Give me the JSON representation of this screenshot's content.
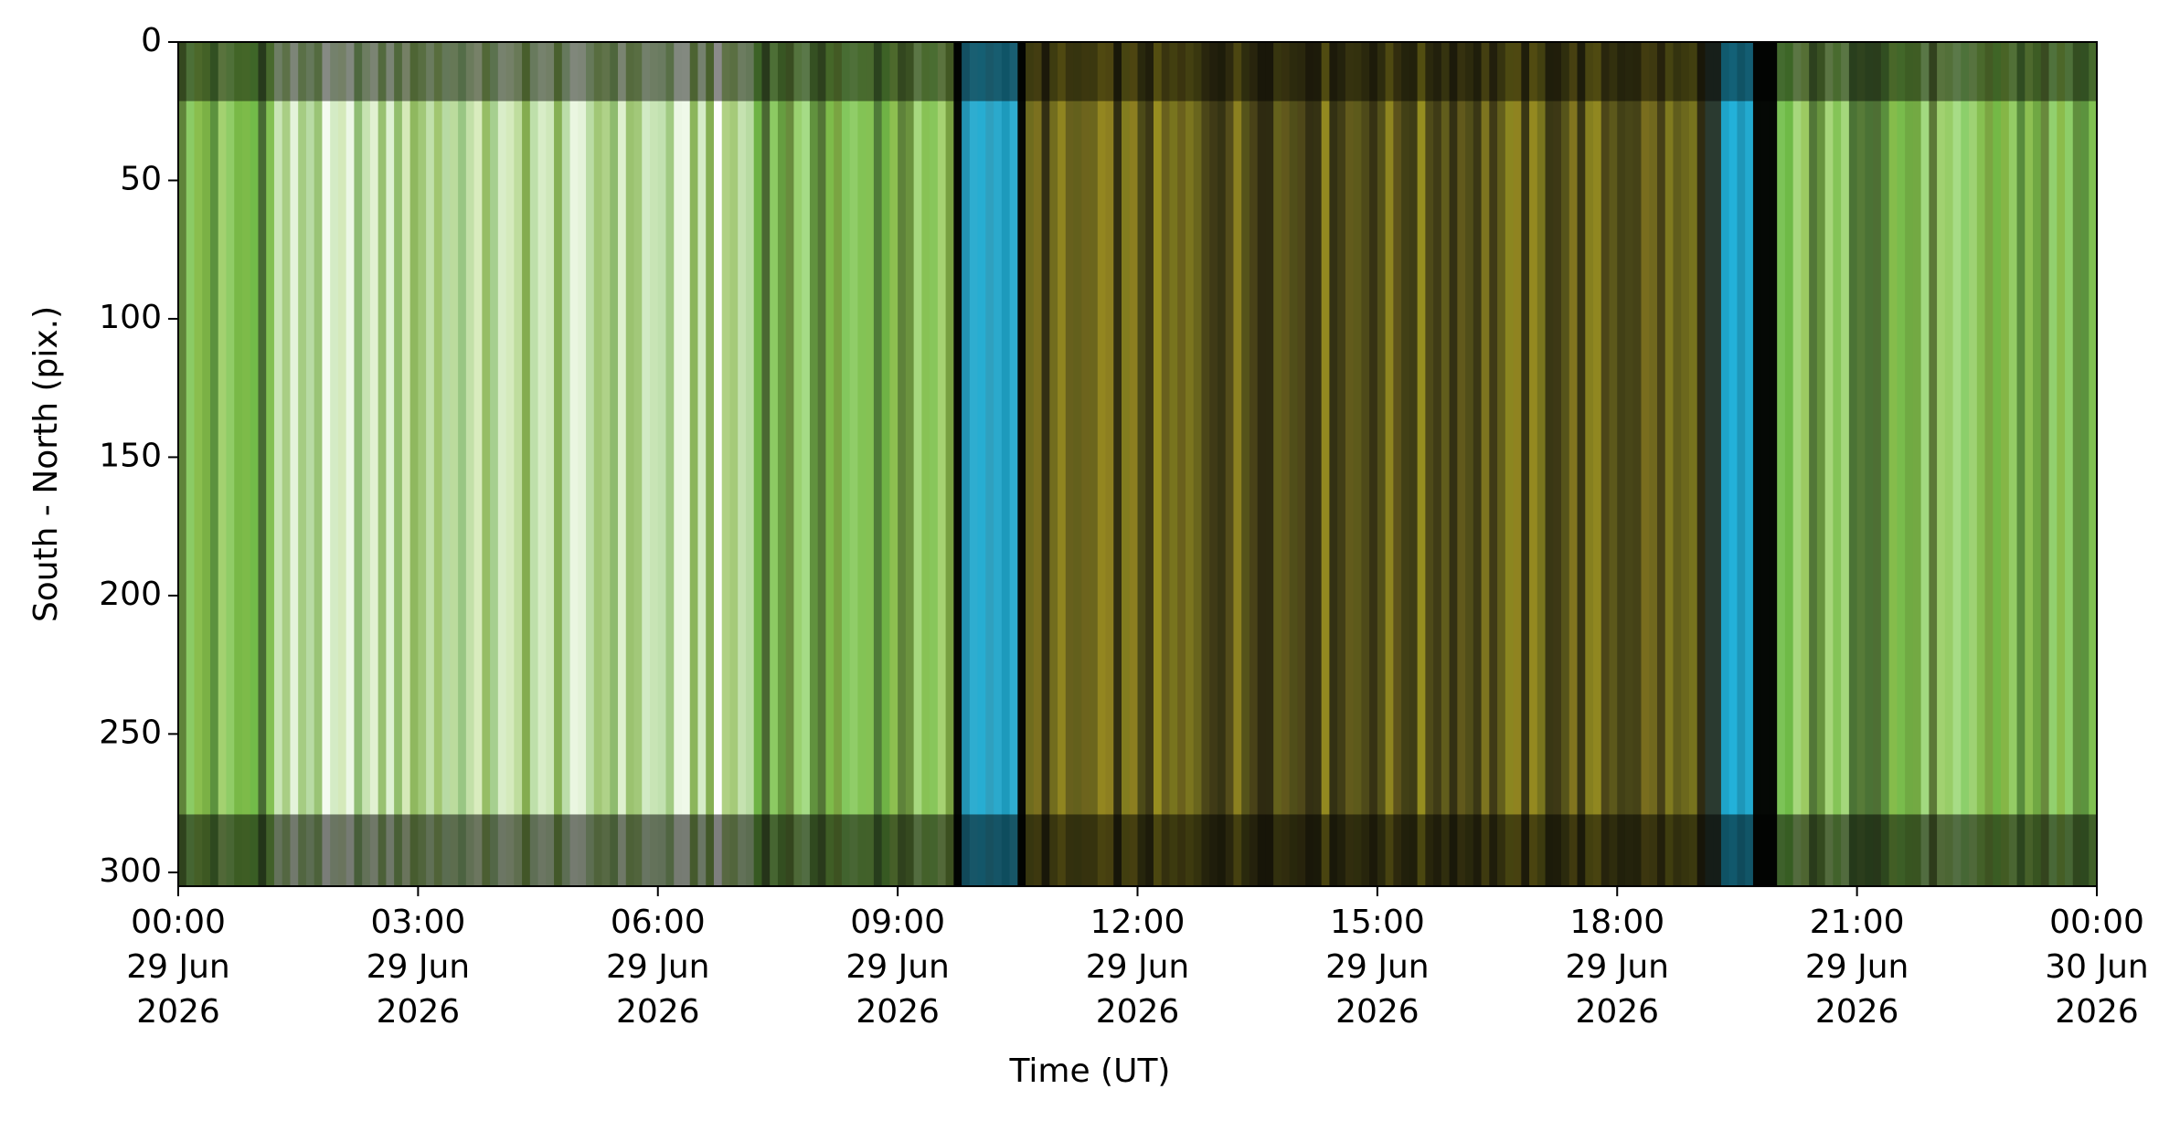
{
  "chart_data": {
    "type": "image",
    "xlabel": "Time (UT)",
    "ylabel": "South - North (pix.)",
    "xlim": [
      "2026-06-29T00:00",
      "2026-06-30T00:00"
    ],
    "ylim": [
      305,
      0
    ],
    "xticks": [
      {
        "value": "2026-06-29T00:00",
        "label": "00:00\n29 Jun\n2026"
      },
      {
        "value": "2026-06-29T03:00",
        "label": "03:00\n29 Jun\n2026"
      },
      {
        "value": "2026-06-29T06:00",
        "label": "06:00\n29 Jun\n2026"
      },
      {
        "value": "2026-06-29T09:00",
        "label": "09:00\n29 Jun\n2026"
      },
      {
        "value": "2026-06-29T12:00",
        "label": "12:00\n29 Jun\n2026"
      },
      {
        "value": "2026-06-29T15:00",
        "label": "15:00\n29 Jun\n2026"
      },
      {
        "value": "2026-06-29T18:00",
        "label": "18:00\n29 Jun\n2026"
      },
      {
        "value": "2026-06-29T21:00",
        "label": "21:00\n29 Jun\n2026"
      },
      {
        "value": "2026-06-30T00:00",
        "label": "00:00\n30 Jun\n2026"
      }
    ],
    "yticks": [
      0,
      50,
      100,
      150,
      200,
      250,
      300
    ]
  }
}
